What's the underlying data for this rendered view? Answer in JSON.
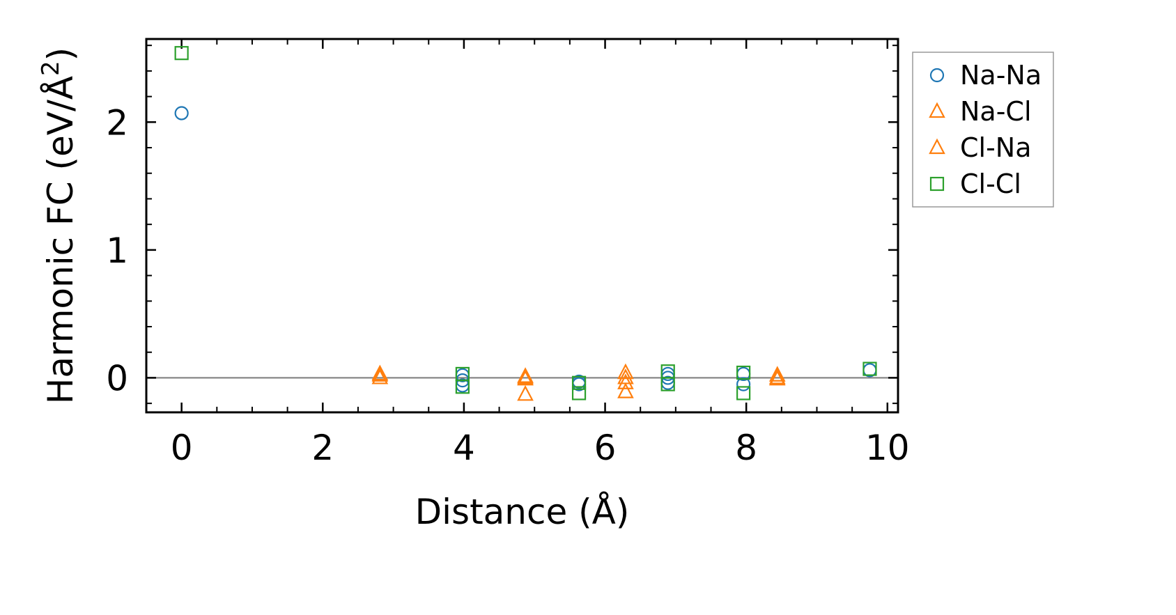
{
  "chart_data": {
    "type": "scatter",
    "title": "",
    "xlabel": "Distance (Å)",
    "ylabel_main": "Harmonic FC (eV/Å",
    "ylabel_sup": "2",
    "ylabel_close": ")",
    "xlim": [
      -0.5,
      10.15
    ],
    "ylim": [
      -0.27,
      2.65
    ],
    "xticks": [
      0,
      2,
      4,
      6,
      8,
      10
    ],
    "xtick_labels": [
      "0",
      "2",
      "4",
      "6",
      "8",
      "10"
    ],
    "yticks": [
      0,
      1,
      2
    ],
    "ytick_labels": [
      "0",
      "1",
      "2"
    ],
    "zero_line": 0,
    "legend_position": "outside-right-top",
    "grid": false,
    "series": [
      {
        "name": "Na-Na",
        "marker": "circle",
        "color": "#1f77b4",
        "points": [
          [
            0,
            2.07
          ],
          [
            3.98,
            0.02
          ],
          [
            3.98,
            -0.02
          ],
          [
            3.98,
            -0.06
          ],
          [
            5.63,
            -0.03
          ],
          [
            5.63,
            -0.05
          ],
          [
            6.89,
            0.03
          ],
          [
            6.89,
            0.0
          ],
          [
            6.89,
            -0.04
          ],
          [
            7.96,
            0.03
          ],
          [
            7.96,
            -0.05
          ],
          [
            9.75,
            0.06
          ]
        ]
      },
      {
        "name": "Na-Cl",
        "marker": "triangle",
        "color": "#ff7f0e",
        "points": [
          [
            2.81,
            0.03
          ],
          [
            2.81,
            0.0
          ],
          [
            4.87,
            0.01
          ],
          [
            4.87,
            -0.01
          ],
          [
            4.87,
            -0.13
          ],
          [
            6.29,
            0.04
          ],
          [
            6.29,
            -0.04
          ],
          [
            6.29,
            -0.11
          ],
          [
            8.44,
            0.02
          ],
          [
            8.44,
            -0.01
          ]
        ]
      },
      {
        "name": "Cl-Na",
        "marker": "triangle",
        "color": "#ff7f0e",
        "points": [
          [
            2.81,
            0.02
          ],
          [
            4.87,
            0.0
          ],
          [
            6.29,
            0.0
          ],
          [
            8.44,
            0.0
          ]
        ]
      },
      {
        "name": "Cl-Cl",
        "marker": "square",
        "color": "#2ca02c",
        "points": [
          [
            0,
            2.54
          ],
          [
            3.98,
            0.03
          ],
          [
            3.98,
            -0.07
          ],
          [
            5.63,
            -0.04
          ],
          [
            5.63,
            -0.12
          ],
          [
            6.89,
            0.05
          ],
          [
            6.89,
            -0.05
          ],
          [
            7.96,
            0.04
          ],
          [
            7.96,
            -0.12
          ],
          [
            9.75,
            0.07
          ]
        ]
      }
    ]
  }
}
